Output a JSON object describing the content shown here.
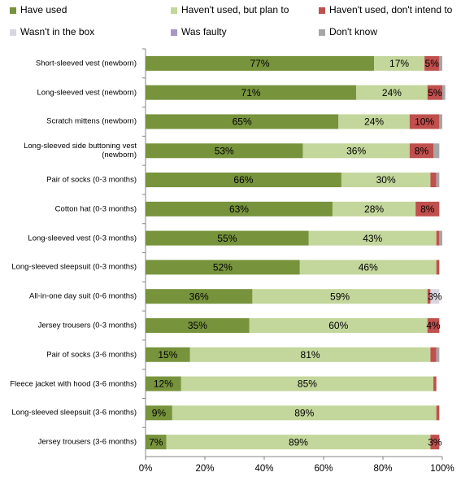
{
  "chart_data": {
    "type": "stacked_bar_horizontal",
    "categories": [
      "Short-sleeved vest (newborn)",
      "Long-sleeved vest (newborn)",
      "Scratch mittens (newborn)",
      "Long-sleeved side buttoning vest (newborn)",
      "Pair of socks (0-3 months)",
      "Cotton hat (0-3 months)",
      "Long-sleeved vest (0-3 months)",
      "Long-sleeved sleepsuit (0-3 months)",
      "All-in-one day suit (0-6 months)",
      "Jersey trousers (0-3 months)",
      "Pair of socks (3-6 months)",
      "Fleece jacket with hood (3-6 months)",
      "Long-sleeved sleepsuit (3-6 months)",
      "Jersey trousers (3-6 months)"
    ],
    "series": [
      {
        "name": "Have used",
        "color": "#77933c",
        "values": [
          77,
          71,
          65,
          53,
          66,
          63,
          55,
          52,
          36,
          35,
          15,
          12,
          9,
          7
        ],
        "value_labels": [
          "77%",
          "71%",
          "65%",
          "53%",
          "66%",
          "63%",
          "55%",
          "52%",
          "36%",
          "35%",
          "15%",
          "12%",
          "9%",
          "7%"
        ]
      },
      {
        "name": "Haven't used, but plan to",
        "color": "#c3d69b",
        "values": [
          17,
          24,
          24,
          36,
          30,
          28,
          43,
          46,
          59,
          60,
          81,
          85,
          89,
          89
        ],
        "value_labels": [
          "17%",
          "24%",
          "24%",
          "36%",
          "30%",
          "28%",
          "43%",
          "46%",
          "59%",
          "60%",
          "81%",
          "85%",
          "89%",
          "89%"
        ]
      },
      {
        "name": "Haven't used, don't intend to",
        "color": "#c0504d",
        "values": [
          5,
          5,
          10,
          8,
          2,
          8,
          1,
          1,
          1,
          4,
          2,
          1,
          1,
          3
        ],
        "value_labels": [
          "5%",
          "5%",
          "10%",
          "8%",
          null,
          "8%",
          null,
          null,
          null,
          "4%",
          null,
          null,
          null,
          "3%"
        ]
      },
      {
        "name": "Wasn't in the box",
        "color": "#d9d5e3",
        "values": [
          0,
          0,
          0,
          0,
          0,
          0,
          0,
          0,
          3,
          0,
          0,
          0,
          0,
          0
        ],
        "value_labels": [
          null,
          null,
          null,
          null,
          null,
          null,
          null,
          null,
          "3%",
          null,
          null,
          null,
          null,
          null
        ]
      },
      {
        "name": "Was faulty",
        "color": "#a897c6",
        "values": [
          0,
          0,
          0,
          0,
          0,
          0,
          0,
          0,
          0,
          0,
          0,
          0,
          0,
          0
        ]
      },
      {
        "name": "Don't know",
        "color": "#a6a6a6",
        "values": [
          1,
          1,
          1,
          2,
          1,
          0,
          1,
          0,
          0,
          0,
          1,
          0,
          0,
          0
        ]
      }
    ],
    "xlim": [
      0,
      100
    ],
    "xticks": [
      {
        "value": 0,
        "label": "0%"
      },
      {
        "value": 20,
        "label": "20%"
      },
      {
        "value": 40,
        "label": "40%"
      },
      {
        "value": 60,
        "label": "60%"
      },
      {
        "value": 80,
        "label": "80%"
      },
      {
        "value": 100,
        "label": "100%"
      }
    ]
  }
}
